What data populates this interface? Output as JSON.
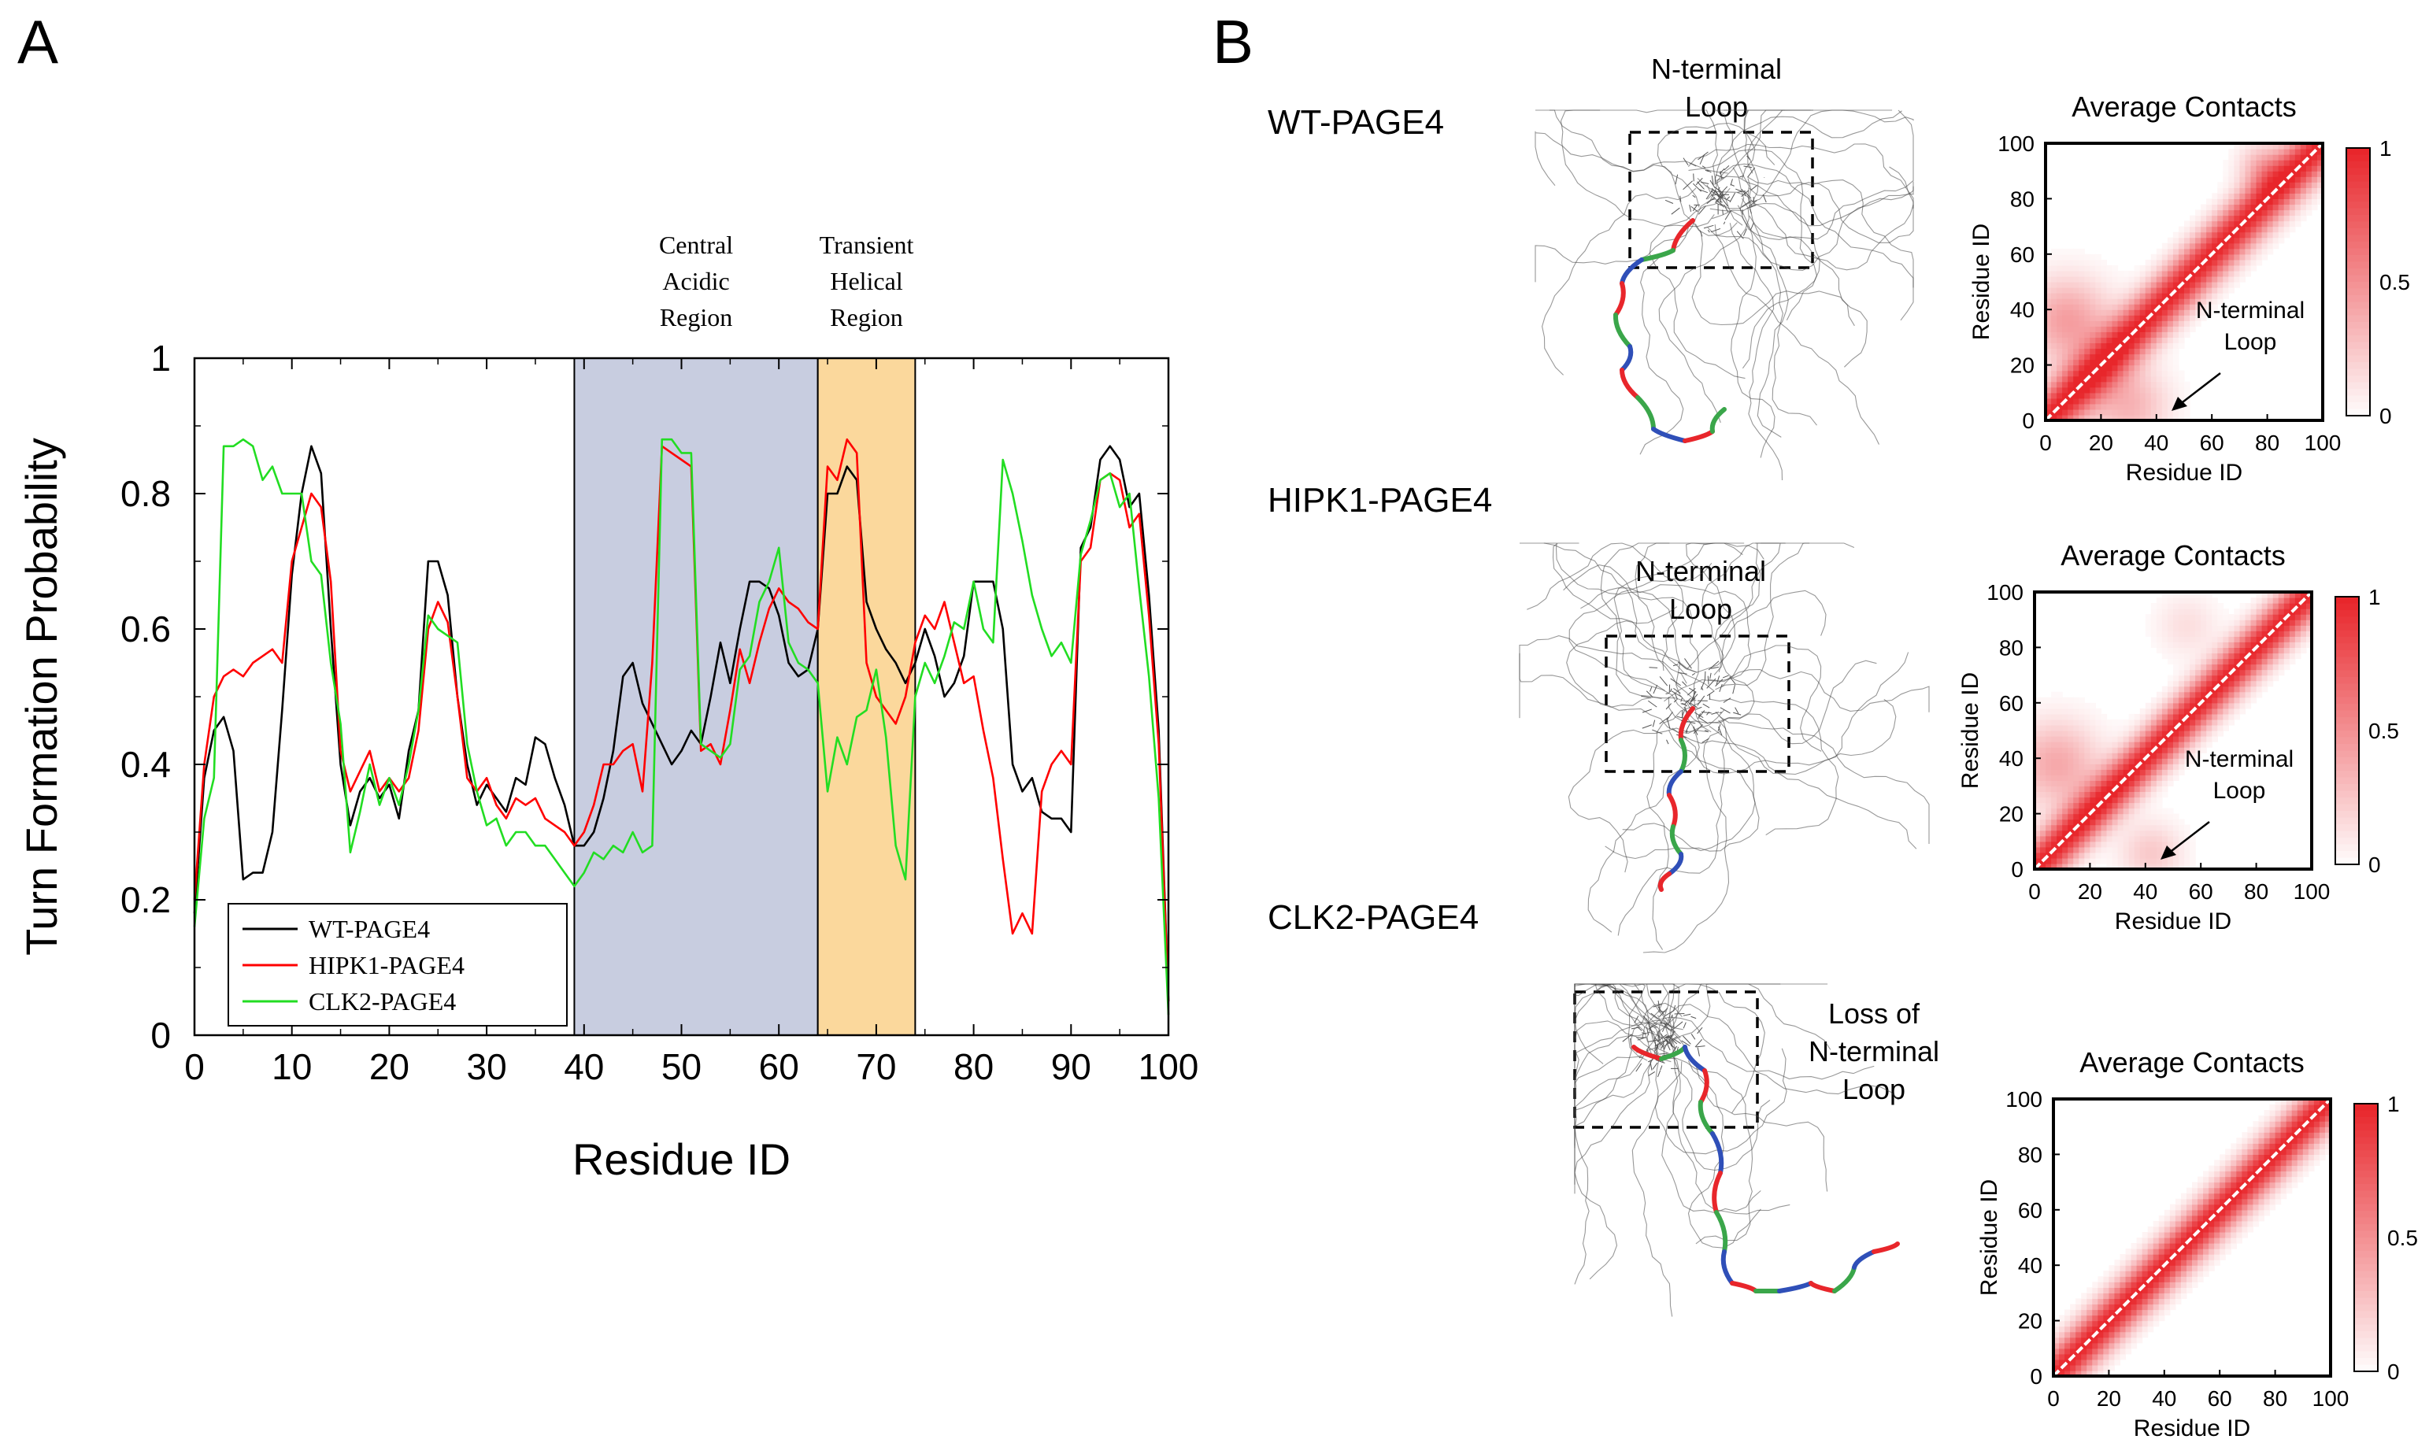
{
  "panels": {
    "a_label": "A",
    "b_label": "B"
  },
  "chart_data": [
    {
      "type": "line",
      "title": "",
      "xlabel": "Residue ID",
      "ylabel": "Turn Formation Probability",
      "xlim": [
        0,
        100
      ],
      "ylim": [
        0,
        1
      ],
      "x_ticks": [
        "0",
        "10",
        "20",
        "30",
        "40",
        "50",
        "60",
        "70",
        "80",
        "90",
        "100"
      ],
      "y_ticks": [
        "0",
        "0.2",
        "0.4",
        "0.6",
        "0.8",
        "1"
      ],
      "regions": [
        {
          "label_lines": [
            "Central",
            "Acidic",
            "Region"
          ],
          "start": 39,
          "end": 64,
          "color": "#c8cde0"
        },
        {
          "label_lines": [
            "Transient",
            "Helical",
            "Region"
          ],
          "start": 64,
          "end": 74,
          "color": "#fbd89c"
        }
      ],
      "legend_position": "bottom-left",
      "series": [
        {
          "name": "WT-PAGE4",
          "color": "#000000",
          "values": [
            0.18,
            0.38,
            0.45,
            0.47,
            0.42,
            0.23,
            0.24,
            0.24,
            0.3,
            0.48,
            0.68,
            0.8,
            0.87,
            0.83,
            0.6,
            0.4,
            0.31,
            0.36,
            0.38,
            0.35,
            0.37,
            0.32,
            0.42,
            0.48,
            0.7,
            0.7,
            0.65,
            0.5,
            0.4,
            0.34,
            0.37,
            0.35,
            0.33,
            0.38,
            0.37,
            0.44,
            0.43,
            0.38,
            0.34,
            0.28,
            0.28,
            0.3,
            0.35,
            0.42,
            0.53,
            0.55,
            0.49,
            0.46,
            0.43,
            0.4,
            0.42,
            0.45,
            0.43,
            0.5,
            0.58,
            0.52,
            0.6,
            0.67,
            0.67,
            0.66,
            0.62,
            0.55,
            0.53,
            0.54,
            0.6,
            0.8,
            0.8,
            0.84,
            0.82,
            0.64,
            0.6,
            0.57,
            0.55,
            0.52,
            0.55,
            0.6,
            0.56,
            0.5,
            0.52,
            0.56,
            0.67,
            0.67,
            0.67,
            0.6,
            0.4,
            0.36,
            0.38,
            0.33,
            0.32,
            0.32,
            0.3,
            0.72,
            0.75,
            0.85,
            0.87,
            0.85,
            0.78,
            0.8,
            0.65,
            0.45,
            0.05
          ]
        },
        {
          "name": "HIPK1-PAGE4",
          "color": "#ff0000",
          "values": [
            0.2,
            0.4,
            0.5,
            0.53,
            0.54,
            0.53,
            0.55,
            0.56,
            0.57,
            0.55,
            0.7,
            0.75,
            0.8,
            0.78,
            0.67,
            0.42,
            0.36,
            0.39,
            0.42,
            0.36,
            0.38,
            0.36,
            0.38,
            0.45,
            0.6,
            0.64,
            0.61,
            0.5,
            0.38,
            0.36,
            0.38,
            0.34,
            0.32,
            0.35,
            0.34,
            0.35,
            0.32,
            0.31,
            0.3,
            0.28,
            0.3,
            0.34,
            0.4,
            0.4,
            0.42,
            0.43,
            0.36,
            0.55,
            0.87,
            0.86,
            0.85,
            0.84,
            0.42,
            0.43,
            0.4,
            0.48,
            0.57,
            0.52,
            0.58,
            0.63,
            0.66,
            0.64,
            0.63,
            0.61,
            0.6,
            0.84,
            0.82,
            0.88,
            0.86,
            0.55,
            0.5,
            0.48,
            0.46,
            0.5,
            0.58,
            0.62,
            0.6,
            0.64,
            0.58,
            0.52,
            0.53,
            0.45,
            0.38,
            0.26,
            0.15,
            0.18,
            0.15,
            0.36,
            0.4,
            0.42,
            0.4,
            0.7,
            0.72,
            0.82,
            0.83,
            0.82,
            0.75,
            0.77,
            0.62,
            0.43,
            0.05
          ]
        },
        {
          "name": "CLK2-PAGE4",
          "color": "#22dd22",
          "values": [
            0.16,
            0.32,
            0.38,
            0.87,
            0.87,
            0.88,
            0.87,
            0.82,
            0.84,
            0.8,
            0.8,
            0.8,
            0.7,
            0.68,
            0.55,
            0.46,
            0.27,
            0.33,
            0.4,
            0.34,
            0.38,
            0.34,
            0.4,
            0.48,
            0.62,
            0.6,
            0.59,
            0.58,
            0.43,
            0.36,
            0.31,
            0.32,
            0.28,
            0.3,
            0.3,
            0.28,
            0.28,
            0.26,
            0.24,
            0.22,
            0.24,
            0.27,
            0.26,
            0.28,
            0.27,
            0.3,
            0.27,
            0.28,
            0.88,
            0.88,
            0.86,
            0.86,
            0.43,
            0.42,
            0.41,
            0.43,
            0.54,
            0.56,
            0.64,
            0.67,
            0.72,
            0.58,
            0.55,
            0.54,
            0.52,
            0.36,
            0.44,
            0.4,
            0.47,
            0.48,
            0.54,
            0.44,
            0.28,
            0.23,
            0.5,
            0.55,
            0.52,
            0.56,
            0.61,
            0.6,
            0.67,
            0.6,
            0.58,
            0.85,
            0.8,
            0.73,
            0.65,
            0.6,
            0.56,
            0.58,
            0.55,
            0.71,
            0.76,
            0.82,
            0.83,
            0.78,
            0.8,
            0.66,
            0.53,
            0.35,
            0.03
          ]
        }
      ]
    },
    {
      "type": "heatmap",
      "title": "Average Contacts",
      "xlabel": "Residue ID",
      "ylabel": "Residue ID",
      "xlim": [
        0,
        100
      ],
      "ylim": [
        0,
        100
      ],
      "x_ticks": [
        "0",
        "20",
        "40",
        "60",
        "80",
        "100"
      ],
      "y_ticks": [
        "0",
        "20",
        "40",
        "60",
        "80",
        "100"
      ],
      "colorbar_ticks": [
        "0",
        "0.5",
        "1"
      ],
      "colorbar_range": [
        0,
        1
      ],
      "annotation": [
        "N-terminal",
        "Loop"
      ],
      "diagonal_band_width": 12,
      "off_diagonal_blobs": [
        {
          "i": 8,
          "j": 36,
          "spread": 11,
          "value": 0.45
        },
        {
          "i": 30,
          "j": 6,
          "spread": 10,
          "value": 0.35
        },
        {
          "i": 78,
          "j": 92,
          "spread": 6,
          "value": 0.3
        }
      ]
    },
    {
      "type": "heatmap",
      "title": "Average Contacts",
      "xlabel": "Residue ID",
      "ylabel": "Residue ID",
      "xlim": [
        0,
        100
      ],
      "ylim": [
        0,
        100
      ],
      "x_ticks": [
        "0",
        "20",
        "40",
        "60",
        "80",
        "100"
      ],
      "y_ticks": [
        "0",
        "20",
        "40",
        "60",
        "80",
        "100"
      ],
      "colorbar_ticks": [
        "0",
        "0.5",
        "1"
      ],
      "colorbar_range": [
        0,
        1
      ],
      "annotation": [
        "N-terminal",
        "Loop"
      ],
      "diagonal_band_width": 11,
      "off_diagonal_blobs": [
        {
          "i": 8,
          "j": 38,
          "spread": 11,
          "value": 0.4
        },
        {
          "i": 42,
          "j": 6,
          "spread": 8,
          "value": 0.25
        },
        {
          "i": 55,
          "j": 88,
          "spread": 8,
          "value": 0.15
        }
      ]
    },
    {
      "type": "heatmap",
      "title": "Average Contacts",
      "xlabel": "Residue ID",
      "ylabel": "Residue ID",
      "xlim": [
        0,
        100
      ],
      "ylim": [
        0,
        100
      ],
      "x_ticks": [
        "0",
        "20",
        "40",
        "60",
        "80",
        "100"
      ],
      "y_ticks": [
        "0",
        "20",
        "40",
        "60",
        "80",
        "100"
      ],
      "colorbar_ticks": [
        "0",
        "0.5",
        "1"
      ],
      "colorbar_range": [
        0,
        1
      ],
      "annotation": [],
      "diagonal_band_width": 11,
      "off_diagonal_blobs": []
    }
  ],
  "structures": [
    {
      "label": "WT-PAGE4",
      "box_label": [
        "N-terminal",
        "Loop"
      ]
    },
    {
      "label": "HIPK1-PAGE4",
      "box_label": [
        "N-terminal",
        "Loop"
      ]
    },
    {
      "label": "CLK2-PAGE4",
      "box_label": [
        "Loss of",
        "N-terminal",
        "Loop"
      ]
    }
  ],
  "colors": {
    "central_region": "#c8cde0",
    "helical_region": "#fbd89c",
    "heat_red": "#e8262b",
    "ribbon_red": "#e8262b",
    "ribbon_green": "#3aa64a",
    "ribbon_blue": "#2f4fb8"
  }
}
